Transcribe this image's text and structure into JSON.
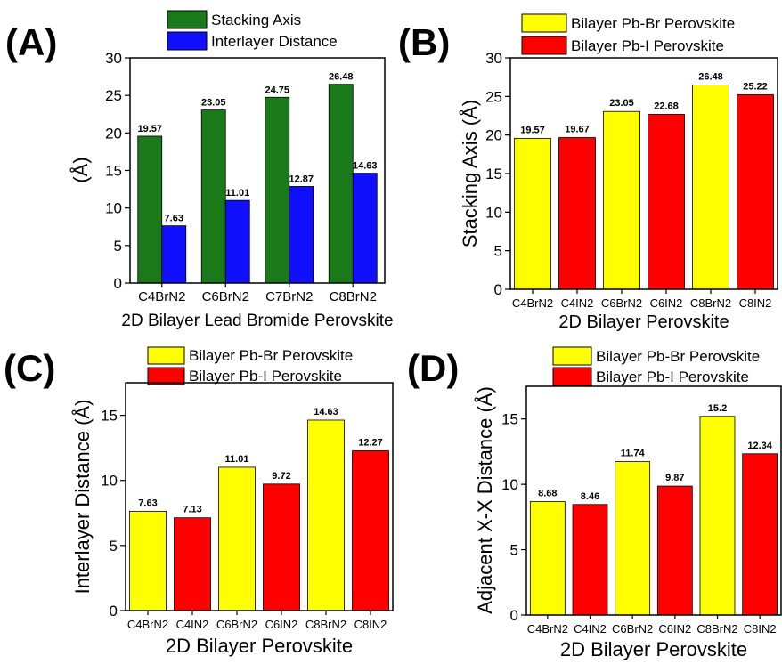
{
  "colors": {
    "green": "#1a7a1a",
    "blue": "#1010ff",
    "yellow": "#ffff00",
    "red": "#ff0000",
    "axis": "#000000"
  },
  "chart_data": [
    {
      "panel": "(A)",
      "type": "bar",
      "categories": [
        "C4BrN2",
        "C6BrN2",
        "C7BrN2",
        "C8BrN2"
      ],
      "series": [
        {
          "name": "Stacking Axis",
          "color": "#1a7a1a",
          "values": [
            19.57,
            23.05,
            24.75,
            26.48
          ],
          "labels": [
            "19.57",
            "23.05",
            "24.75",
            "26.48"
          ]
        },
        {
          "name": "Interlayer Distance",
          "color": "#1010ff",
          "values": [
            7.63,
            11.01,
            12.87,
            14.63
          ],
          "labels": [
            "7.63",
            "11.01",
            "12.87",
            "14.63"
          ]
        }
      ],
      "xlabel": "2D Bilayer Lead Bromide Perovskite",
      "ylabel": "(Å)",
      "ylim": [
        0,
        30
      ],
      "yticks": [
        0,
        5,
        10,
        15,
        20,
        25,
        30
      ],
      "legend": "top"
    },
    {
      "panel": "(B)",
      "type": "bar",
      "categories": [
        "C4BrN2",
        "C4IN2",
        "C6BrN2",
        "C6IN2",
        "C8BrN2",
        "C8IN2"
      ],
      "values": [
        19.57,
        19.67,
        23.05,
        22.68,
        26.48,
        25.22
      ],
      "labels": [
        "19.57",
        "19.67",
        "23.05",
        "22.68",
        "26.48",
        "25.22"
      ],
      "bar_colors": [
        "#ffff00",
        "#ff0000",
        "#ffff00",
        "#ff0000",
        "#ffff00",
        "#ff0000"
      ],
      "legend_entries": [
        {
          "name": "Bilayer Pb-Br Perovskite",
          "color": "#ffff00"
        },
        {
          "name": "Bilayer Pb-I Perovskite",
          "color": "#ff0000"
        }
      ],
      "xlabel": "2D Bilayer Perovskite",
      "ylabel": "Stacking Axis (Å)",
      "ylim": [
        0,
        30
      ],
      "yticks": [
        0,
        5,
        10,
        15,
        20,
        25,
        30
      ],
      "legend": "top"
    },
    {
      "panel": "(C)",
      "type": "bar",
      "categories": [
        "C4BrN2",
        "C4IN2",
        "C6BrN2",
        "C6IN2",
        "C8BrN2",
        "C8IN2"
      ],
      "values": [
        7.63,
        7.13,
        11.01,
        9.72,
        14.63,
        12.27
      ],
      "labels": [
        "7.63",
        "7.13",
        "11.01",
        "9.72",
        "14.63",
        "12.27"
      ],
      "bar_colors": [
        "#ffff00",
        "#ff0000",
        "#ffff00",
        "#ff0000",
        "#ffff00",
        "#ff0000"
      ],
      "legend_entries": [
        {
          "name": "Bilayer Pb-Br Perovskite",
          "color": "#ffff00"
        },
        {
          "name": "Bilayer Pb-I Perovskite",
          "color": "#ff0000"
        }
      ],
      "xlabel": "2D Bilayer Perovskite",
      "ylabel": "Interlayer Distance (Å)",
      "ylim": [
        0,
        17.5
      ],
      "yticks": [
        0,
        5,
        10,
        15
      ],
      "legend": "top"
    },
    {
      "panel": "(D)",
      "type": "bar",
      "categories": [
        "C4BrN2",
        "C4IN2",
        "C6BrN2",
        "C6IN2",
        "C8BrN2",
        "C8IN2"
      ],
      "values": [
        8.68,
        8.46,
        11.74,
        9.87,
        15.2,
        12.34
      ],
      "labels": [
        "8.68",
        "8.46",
        "11.74",
        "9.87",
        "15.2",
        "12.34"
      ],
      "bar_colors": [
        "#ffff00",
        "#ff0000",
        "#ffff00",
        "#ff0000",
        "#ffff00",
        "#ff0000"
      ],
      "legend_entries": [
        {
          "name": "Bilayer Pb-Br Perovskite",
          "color": "#ffff00"
        },
        {
          "name": "Bilayer Pb-I Perovskite",
          "color": "#ff0000"
        }
      ],
      "xlabel": "2D Bilayer Perovskite",
      "ylabel": "Adjacent X-X Distance (Å)",
      "ylim": [
        0,
        17.5
      ],
      "yticks": [
        0,
        5,
        10,
        15
      ],
      "legend": "top"
    }
  ]
}
